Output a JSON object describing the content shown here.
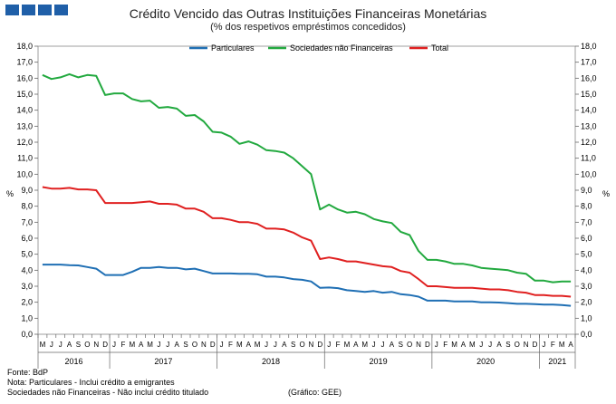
{
  "title": "Crédito Vencido das Outras Instituições Financeiras Monetárias",
  "subtitle": "(% dos respetivos empréstimos concedidos)",
  "notes": {
    "source": "Fonte: BdP",
    "note1": "Nota: Particulares - Inclui crédito a emigrantes",
    "note2": "Sociedades não Financeiras - Não inclui crédito titulado",
    "credit": "(Gráfico: GEE)"
  },
  "chart_data": {
    "type": "line",
    "ylabel_left": "%",
    "ylabel_right": "%",
    "ylim": [
      0,
      18
    ],
    "yticks": [
      "0,0",
      "1,0",
      "2,0",
      "3,0",
      "4,0",
      "5,0",
      "6,0",
      "7,0",
      "8,0",
      "9,0",
      "10,0",
      "11,0",
      "12,0",
      "13,0",
      "14,0",
      "15,0",
      "16,0",
      "17,0",
      "18,0"
    ],
    "grid": false,
    "legend_position": "top",
    "month_labels": [
      "M",
      "J",
      "J",
      "A",
      "S",
      "O",
      "N",
      "D",
      "J",
      "F",
      "M",
      "A",
      "M",
      "J",
      "J",
      "A",
      "S",
      "O",
      "N",
      "D",
      "J",
      "F",
      "M",
      "A",
      "M",
      "J",
      "J",
      "A",
      "S",
      "O",
      "N",
      "D",
      "J",
      "F",
      "M",
      "A",
      "M",
      "J",
      "J",
      "A",
      "S",
      "O",
      "N",
      "D",
      "J",
      "F",
      "M",
      "A",
      "M",
      "J",
      "J",
      "A",
      "S",
      "O",
      "N",
      "D",
      "J",
      "F",
      "M",
      "A"
    ],
    "year_labels": [
      {
        "label": "2016",
        "start": 0,
        "end": 7
      },
      {
        "label": "2017",
        "start": 8,
        "end": 19
      },
      {
        "label": "2018",
        "start": 20,
        "end": 31
      },
      {
        "label": "2019",
        "start": 32,
        "end": 43
      },
      {
        "label": "2020",
        "start": 44,
        "end": 55
      },
      {
        "label": "2021",
        "start": 56,
        "end": 59
      }
    ],
    "series": [
      {
        "name": "Particulares",
        "color": "#1f6fb4",
        "values": [
          4.35,
          4.35,
          4.35,
          4.32,
          4.3,
          4.2,
          4.1,
          3.7,
          3.7,
          3.7,
          3.9,
          4.15,
          4.15,
          4.2,
          4.15,
          4.15,
          4.05,
          4.1,
          3.95,
          3.8,
          3.8,
          3.8,
          3.78,
          3.78,
          3.75,
          3.6,
          3.6,
          3.55,
          3.45,
          3.4,
          3.3,
          2.9,
          2.92,
          2.88,
          2.75,
          2.7,
          2.65,
          2.7,
          2.6,
          2.65,
          2.5,
          2.45,
          2.35,
          2.1,
          2.1,
          2.1,
          2.05,
          2.05,
          2.05,
          2.0,
          2.0,
          1.98,
          1.95,
          1.9,
          1.9,
          1.88,
          1.85,
          1.85,
          1.82,
          1.78
        ]
      },
      {
        "name": "Sociedades não Financeiras",
        "color": "#22a93f",
        "values": [
          16.2,
          15.95,
          16.05,
          16.25,
          16.05,
          16.2,
          16.15,
          14.95,
          15.05,
          15.05,
          14.7,
          14.55,
          14.6,
          14.15,
          14.2,
          14.1,
          13.65,
          13.7,
          13.3,
          12.65,
          12.6,
          12.35,
          11.9,
          12.05,
          11.85,
          11.5,
          11.45,
          11.35,
          11.0,
          10.5,
          10.0,
          7.8,
          8.1,
          7.8,
          7.6,
          7.65,
          7.5,
          7.2,
          7.05,
          6.95,
          6.4,
          6.2,
          5.2,
          4.65,
          4.65,
          4.55,
          4.4,
          4.4,
          4.3,
          4.15,
          4.1,
          4.05,
          4.0,
          3.85,
          3.78,
          3.35,
          3.35,
          3.25,
          3.3,
          3.3
        ]
      },
      {
        "name": "Total",
        "color": "#e02020",
        "values": [
          9.2,
          9.1,
          9.1,
          9.15,
          9.05,
          9.05,
          9.0,
          8.2,
          8.2,
          8.2,
          8.2,
          8.25,
          8.3,
          8.15,
          8.15,
          8.1,
          7.85,
          7.85,
          7.65,
          7.25,
          7.25,
          7.15,
          7.0,
          7.0,
          6.9,
          6.6,
          6.6,
          6.55,
          6.35,
          6.05,
          5.85,
          4.7,
          4.8,
          4.7,
          4.55,
          4.55,
          4.45,
          4.35,
          4.25,
          4.2,
          3.95,
          3.85,
          3.45,
          3.0,
          3.0,
          2.95,
          2.9,
          2.9,
          2.9,
          2.85,
          2.8,
          2.8,
          2.75,
          2.65,
          2.6,
          2.45,
          2.45,
          2.4,
          2.4,
          2.35
        ]
      }
    ]
  }
}
